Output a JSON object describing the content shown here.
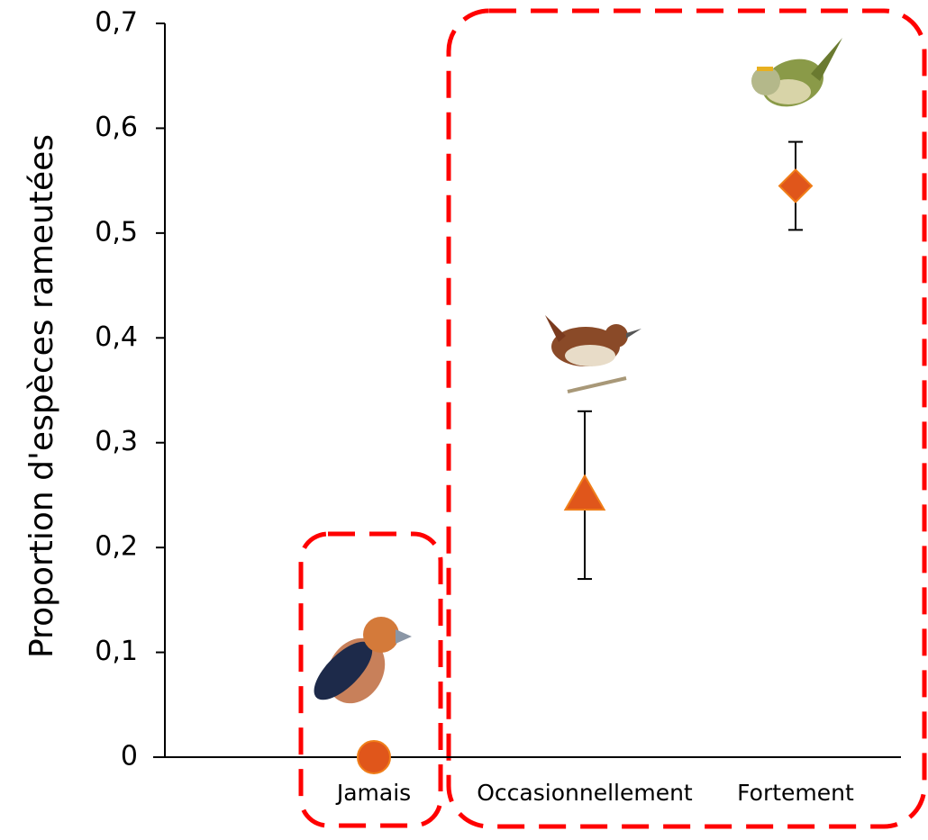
{
  "chart_data": {
    "type": "scatter",
    "y_label": "Proportion d'espèces rameutées",
    "categories": [
      "Jamais",
      "Occasionnellement",
      "Fortement"
    ],
    "values": [
      0,
      0.25,
      0.545
    ],
    "errors": [
      null,
      0.08,
      0.042
    ],
    "markers": [
      "circle",
      "triangle",
      "diamond"
    ],
    "color": "#e0561b",
    "ylim": [
      0,
      0.7
    ],
    "yticks": [
      0,
      {
        "value": 0.1,
        "label": "0,1"
      },
      {
        "value": 0.2,
        "label": "0,2"
      },
      {
        "value": 0.3,
        "label": "0,3"
      },
      {
        "value": 0.4,
        "label": "0,4"
      },
      {
        "value": 0.5,
        "label": "0,5"
      },
      {
        "value": 0.6,
        "label": "0,6"
      },
      {
        "value": 0.7,
        "label": "0,7"
      }
    ],
    "grid": false
  }
}
